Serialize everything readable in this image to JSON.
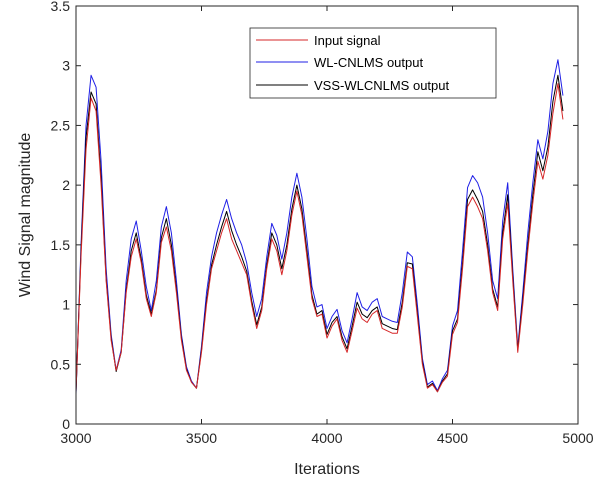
{
  "chart_data": {
    "type": "line",
    "title": "",
    "xlabel": "Iterations",
    "ylabel": "Wind Signal magnitude",
    "xlim": [
      3000,
      5000
    ],
    "ylim": [
      0,
      3.5
    ],
    "xticks": [
      3000,
      3500,
      4000,
      4500,
      5000
    ],
    "yticks": [
      0,
      0.5,
      1,
      1.5,
      2,
      2.5,
      3,
      3.5
    ],
    "xtick_labels": [
      "3000",
      "3500",
      "4000",
      "4500",
      "5000"
    ],
    "ytick_labels": [
      "0",
      "0.5",
      "1",
      "1.5",
      "2",
      "2.5",
      "3",
      "3.5"
    ],
    "grid": false,
    "legend_position": "top-right",
    "x": [
      3000,
      3020,
      3040,
      3060,
      3080,
      3100,
      3120,
      3140,
      3160,
      3180,
      3200,
      3220,
      3240,
      3260,
      3280,
      3300,
      3320,
      3340,
      3360,
      3380,
      3400,
      3420,
      3440,
      3460,
      3480,
      3500,
      3520,
      3540,
      3560,
      3580,
      3600,
      3620,
      3640,
      3660,
      3680,
      3700,
      3720,
      3740,
      3760,
      3780,
      3800,
      3820,
      3840,
      3860,
      3880,
      3900,
      3920,
      3940,
      3960,
      3980,
      4000,
      4020,
      4040,
      4060,
      4080,
      4100,
      4120,
      4140,
      4160,
      4180,
      4200,
      4220,
      4240,
      4260,
      4280,
      4300,
      4320,
      4340,
      4360,
      4380,
      4400,
      4420,
      4440,
      4460,
      4480,
      4500,
      4520,
      4540,
      4560,
      4580,
      4600,
      4620,
      4640,
      4660,
      4680,
      4700,
      4720,
      4740,
      4760,
      4780,
      4800,
      4820,
      4840,
      4860,
      4880,
      4900,
      4920,
      4940
    ],
    "series": [
      {
        "name": "Input signal",
        "color": "#d62728",
        "values": [
          0.27,
          1.4,
          2.3,
          2.73,
          2.62,
          2.0,
          1.2,
          0.7,
          0.45,
          0.6,
          1.1,
          1.4,
          1.55,
          1.35,
          1.05,
          0.9,
          1.1,
          1.52,
          1.65,
          1.45,
          1.1,
          0.7,
          0.45,
          0.35,
          0.3,
          0.6,
          1.0,
          1.3,
          1.45,
          1.6,
          1.72,
          1.55,
          1.45,
          1.35,
          1.25,
          1.0,
          0.8,
          0.95,
          1.3,
          1.55,
          1.45,
          1.25,
          1.45,
          1.75,
          1.95,
          1.75,
          1.4,
          1.05,
          0.9,
          0.92,
          0.72,
          0.82,
          0.88,
          0.7,
          0.6,
          0.78,
          0.97,
          0.88,
          0.85,
          0.92,
          0.95,
          0.8,
          0.78,
          0.76,
          0.76,
          0.98,
          1.32,
          1.3,
          0.9,
          0.5,
          0.3,
          0.33,
          0.27,
          0.35,
          0.4,
          0.75,
          0.85,
          1.3,
          1.82,
          1.9,
          1.82,
          1.72,
          1.45,
          1.1,
          0.95,
          1.55,
          1.85,
          1.2,
          0.6,
          1.0,
          1.45,
          1.85,
          2.2,
          2.05,
          2.25,
          2.6,
          2.85,
          2.55
        ]
      },
      {
        "name": "WL-CNLMS output",
        "color": "#1f1fe6",
        "values": [
          0.25,
          1.5,
          2.5,
          2.92,
          2.82,
          2.2,
          1.3,
          0.75,
          0.45,
          0.62,
          1.2,
          1.55,
          1.7,
          1.45,
          1.15,
          0.95,
          1.2,
          1.65,
          1.82,
          1.6,
          1.2,
          0.75,
          0.48,
          0.36,
          0.3,
          0.65,
          1.1,
          1.4,
          1.6,
          1.75,
          1.88,
          1.72,
          1.6,
          1.5,
          1.35,
          1.1,
          0.9,
          1.05,
          1.4,
          1.68,
          1.58,
          1.38,
          1.6,
          1.9,
          2.1,
          1.9,
          1.55,
          1.15,
          0.98,
          1.0,
          0.8,
          0.9,
          0.96,
          0.78,
          0.68,
          0.88,
          1.1,
          0.98,
          0.95,
          1.02,
          1.05,
          0.9,
          0.88,
          0.86,
          0.85,
          1.1,
          1.44,
          1.4,
          1.0,
          0.55,
          0.33,
          0.36,
          0.28,
          0.38,
          0.45,
          0.82,
          0.95,
          1.45,
          1.98,
          2.08,
          2.02,
          1.9,
          1.6,
          1.2,
          1.05,
          1.7,
          2.02,
          1.3,
          0.64,
          1.1,
          1.6,
          2.02,
          2.38,
          2.22,
          2.45,
          2.85,
          3.05,
          2.75
        ]
      },
      {
        "name": "VSS-WLCNLMS output",
        "color": "#000000",
        "values": [
          0.27,
          1.45,
          2.4,
          2.78,
          2.68,
          2.06,
          1.22,
          0.72,
          0.44,
          0.6,
          1.12,
          1.45,
          1.6,
          1.38,
          1.08,
          0.92,
          1.12,
          1.56,
          1.72,
          1.5,
          1.13,
          0.72,
          0.46,
          0.35,
          0.3,
          0.62,
          1.03,
          1.33,
          1.5,
          1.65,
          1.78,
          1.62,
          1.5,
          1.4,
          1.28,
          1.03,
          0.83,
          0.98,
          1.33,
          1.6,
          1.5,
          1.3,
          1.5,
          1.8,
          2.0,
          1.8,
          1.45,
          1.08,
          0.92,
          0.95,
          0.75,
          0.85,
          0.9,
          0.73,
          0.63,
          0.82,
          1.02,
          0.92,
          0.89,
          0.95,
          0.98,
          0.84,
          0.82,
          0.8,
          0.79,
          1.02,
          1.35,
          1.34,
          0.93,
          0.52,
          0.31,
          0.34,
          0.27,
          0.36,
          0.42,
          0.78,
          0.88,
          1.35,
          1.88,
          1.96,
          1.88,
          1.78,
          1.5,
          1.13,
          0.98,
          1.6,
          1.92,
          1.24,
          0.62,
          1.04,
          1.5,
          1.92,
          2.28,
          2.12,
          2.32,
          2.7,
          2.92,
          2.62
        ]
      }
    ]
  }
}
